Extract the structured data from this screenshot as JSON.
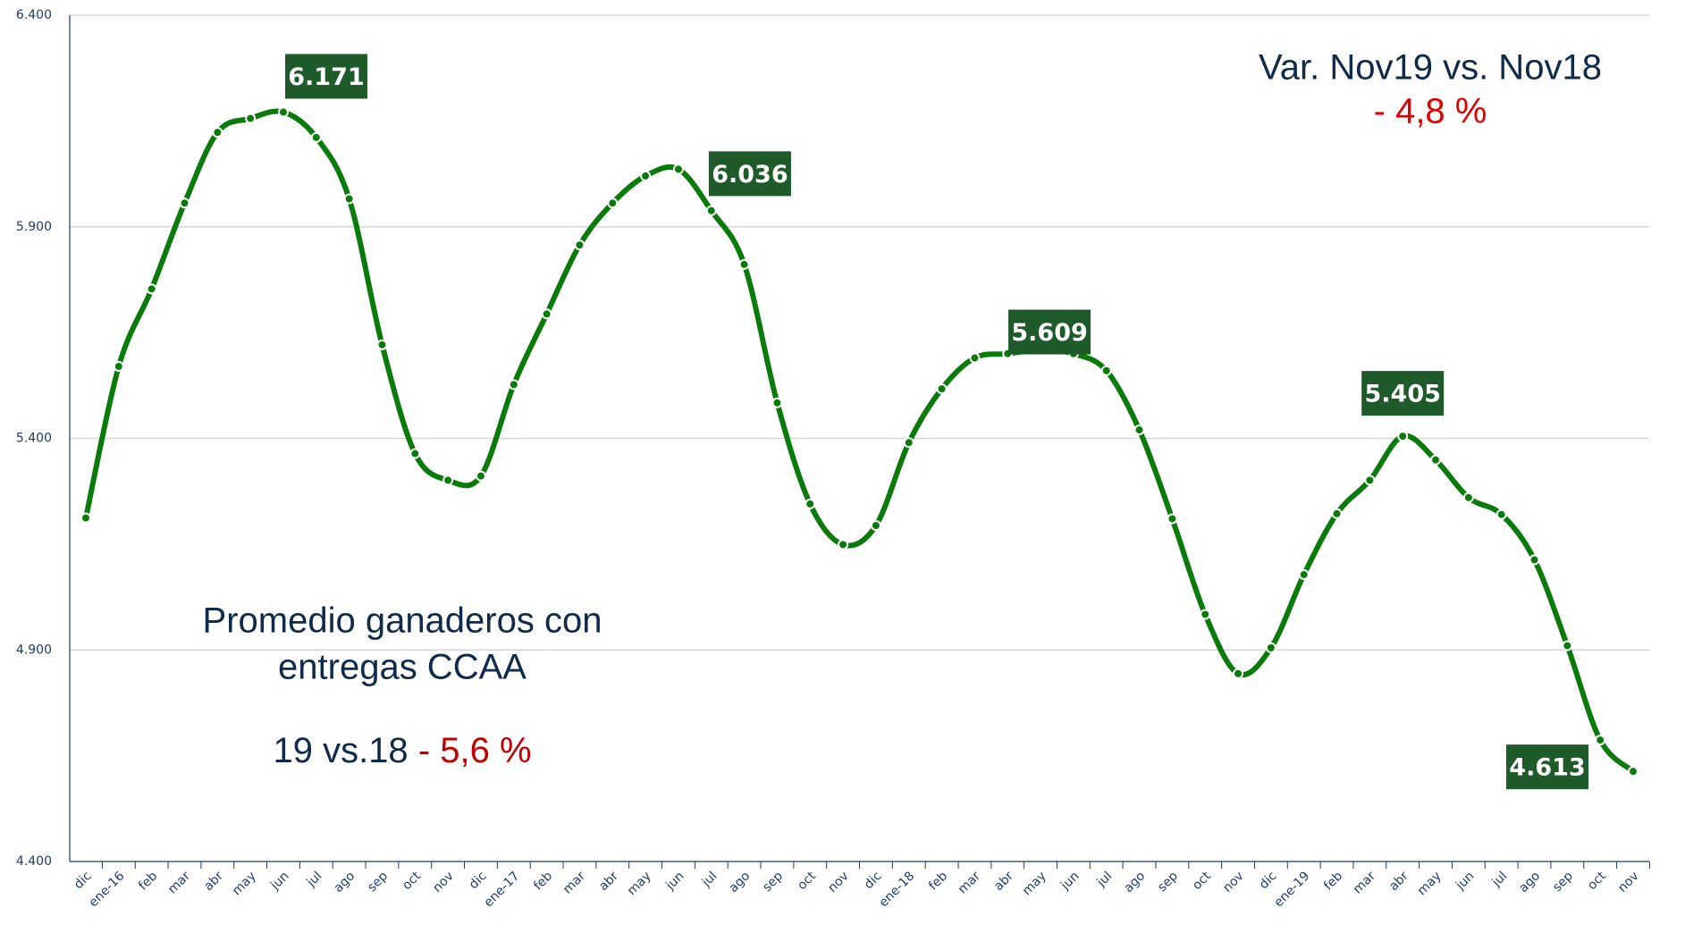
{
  "chart_data": {
    "type": "line",
    "categories": [
      "dic",
      "ene-16",
      "feb",
      "mar",
      "abr",
      "may",
      "jun",
      "jul",
      "ago",
      "sep",
      "oct",
      "nov",
      "dic",
      "ene-17",
      "feb",
      "mar",
      "abr",
      "may",
      "jun",
      "jul",
      "ago",
      "sep",
      "oct",
      "nov",
      "dic",
      "ene-18",
      "feb",
      "mar",
      "abr",
      "may",
      "jun",
      "jul",
      "ago",
      "sep",
      "oct",
      "nov",
      "dic",
      "ene-19",
      "feb",
      "mar",
      "abr",
      "may",
      "jun",
      "jul",
      "ago",
      "sep",
      "oct",
      "nov"
    ],
    "series": [
      {
        "name": "Promedio ganaderos con entregas CCAA",
        "color": "#0a7a0a",
        "values": [
          5212,
          5570,
          5753,
          5956,
          6123,
          6156,
          6171,
          6111,
          5966,
          5621,
          5364,
          5301,
          5311,
          5527,
          5694,
          5857,
          5956,
          6020,
          6036,
          5938,
          5811,
          5484,
          5245,
          5149,
          5194,
          5390,
          5517,
          5590,
          5600,
          5609,
          5600,
          5560,
          5420,
          5210,
          4984,
          4844,
          4905,
          5078,
          5222,
          5301,
          5405,
          5349,
          5260,
          5220,
          5113,
          4910,
          4687,
          4613
        ],
        "value_labels": [
          null,
          null,
          null,
          null,
          null,
          null,
          "6.171",
          null,
          null,
          null,
          null,
          null,
          null,
          null,
          null,
          null,
          null,
          null,
          "6.036",
          null,
          null,
          null,
          null,
          null,
          null,
          null,
          null,
          null,
          null,
          "5.609",
          null,
          null,
          null,
          null,
          null,
          null,
          null,
          null,
          null,
          null,
          "5.405",
          null,
          null,
          null,
          null,
          null,
          null,
          "4.613"
        ]
      }
    ],
    "ylim": [
      4400,
      6400
    ],
    "yticks": [
      {
        "value": 4400,
        "label": "4.400"
      },
      {
        "value": 4900,
        "label": "4.900"
      },
      {
        "value": 5400,
        "label": "5.400"
      },
      {
        "value": 5900,
        "label": "5.900"
      },
      {
        "value": 6400,
        "label": "6.400"
      }
    ],
    "grid": true,
    "annotations": {
      "var_title": "Var. Nov19 vs. Nov18",
      "var_value": "- 4,8 %",
      "avg_line1": "Promedio ganaderos con",
      "avg_line2": "entregas CCAA",
      "avg_compare": "19 vs.18",
      "avg_value": "- 5,6 %"
    }
  }
}
